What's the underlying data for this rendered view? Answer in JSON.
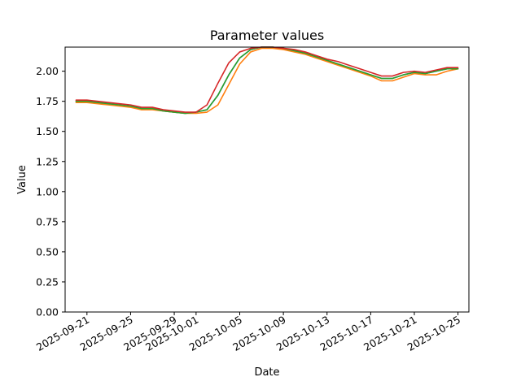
{
  "chart_data": {
    "type": "line",
    "title": "Parameter values",
    "xlabel": "Date",
    "ylabel": "Value",
    "ylim": [
      0,
      2.2
    ],
    "xlim": [
      "2025-09-19",
      "2025-10-26"
    ],
    "grid": false,
    "legend": "none",
    "x_tick_labels": [
      "2025-09-21",
      "2025-09-25",
      "2025-09-29",
      "2025-10-01",
      "2025-10-05",
      "2025-10-09",
      "2025-10-13",
      "2025-10-17",
      "2025-10-21",
      "2025-10-25"
    ],
    "y_tick_labels": [
      "0.00",
      "0.25",
      "0.50",
      "0.75",
      "1.00",
      "1.25",
      "1.50",
      "1.75",
      "2.00"
    ],
    "x": [
      "2025-09-20",
      "2025-09-21",
      "2025-09-22",
      "2025-09-23",
      "2025-09-24",
      "2025-09-25",
      "2025-09-26",
      "2025-09-27",
      "2025-09-28",
      "2025-09-29",
      "2025-09-30",
      "2025-10-01",
      "2025-10-02",
      "2025-10-03",
      "2025-10-04",
      "2025-10-05",
      "2025-10-06",
      "2025-10-07",
      "2025-10-08",
      "2025-10-09",
      "2025-10-10",
      "2025-10-11",
      "2025-10-12",
      "2025-10-13",
      "2025-10-14",
      "2025-10-15",
      "2025-10-16",
      "2025-10-17",
      "2025-10-18",
      "2025-10-19",
      "2025-10-20",
      "2025-10-21",
      "2025-10-22",
      "2025-10-23",
      "2025-10-24",
      "2025-10-25"
    ],
    "series": [
      {
        "color": "#1f77b4",
        "values": [
          1.75,
          1.75,
          1.74,
          1.73,
          1.72,
          1.71,
          1.69,
          1.69,
          1.67,
          1.66,
          1.65,
          1.66,
          1.68,
          1.8,
          1.97,
          2.11,
          2.18,
          2.2,
          2.2,
          2.19,
          2.17,
          2.15,
          2.12,
          2.09,
          2.06,
          2.03,
          2.0,
          1.97,
          1.94,
          1.94,
          1.97,
          1.99,
          1.98,
          2.0,
          2.02,
          2.02
        ]
      },
      {
        "color": "#ff7f0e",
        "values": [
          1.74,
          1.74,
          1.73,
          1.72,
          1.71,
          1.7,
          1.68,
          1.68,
          1.67,
          1.66,
          1.65,
          1.65,
          1.66,
          1.72,
          1.89,
          2.06,
          2.16,
          2.19,
          2.19,
          2.18,
          2.16,
          2.14,
          2.11,
          2.08,
          2.05,
          2.02,
          1.99,
          1.96,
          1.92,
          1.92,
          1.95,
          1.98,
          1.97,
          1.97,
          2.0,
          2.02
        ]
      },
      {
        "color": "#2ca02c",
        "values": [
          1.75,
          1.75,
          1.74,
          1.73,
          1.72,
          1.71,
          1.69,
          1.69,
          1.67,
          1.66,
          1.65,
          1.66,
          1.68,
          1.8,
          1.97,
          2.11,
          2.18,
          2.2,
          2.2,
          2.19,
          2.17,
          2.15,
          2.12,
          2.09,
          2.06,
          2.03,
          2.0,
          1.97,
          1.94,
          1.94,
          1.97,
          1.99,
          1.98,
          2.0,
          2.02,
          2.02
        ]
      },
      {
        "color": "#d62728",
        "values": [
          1.76,
          1.76,
          1.75,
          1.74,
          1.73,
          1.72,
          1.7,
          1.7,
          1.68,
          1.67,
          1.66,
          1.66,
          1.72,
          1.9,
          2.07,
          2.16,
          2.19,
          2.2,
          2.2,
          2.19,
          2.18,
          2.16,
          2.13,
          2.1,
          2.08,
          2.05,
          2.02,
          1.99,
          1.96,
          1.96,
          1.99,
          2.0,
          1.99,
          2.01,
          2.03,
          2.03
        ]
      }
    ]
  }
}
